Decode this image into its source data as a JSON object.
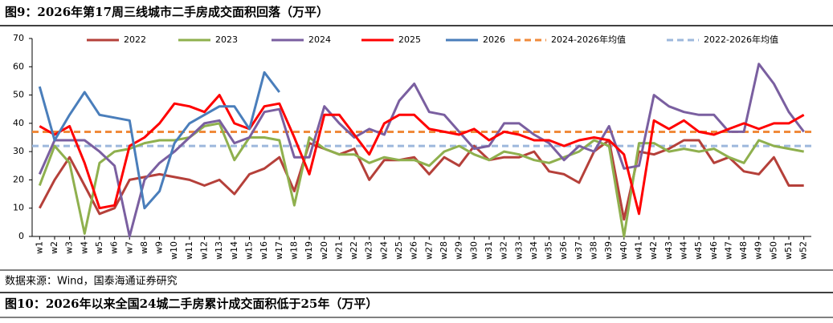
{
  "chart_data": {
    "type": "line",
    "title": "图9：2026年第17周三线城市二手房成交面积回落（万平）",
    "source": "数据来源：Wind，国泰海通证券研究",
    "next_title": "图10：2026年以来全国24城二手房累计成交面积低于25年（万平）",
    "categories": [
      "w1",
      "w2",
      "w3",
      "w4",
      "w5",
      "w6",
      "w7",
      "w8",
      "w9",
      "w10",
      "w11",
      "w12",
      "w13",
      "w14",
      "w15",
      "w16",
      "w17",
      "w18",
      "w19",
      "w20",
      "w21",
      "w22",
      "w23",
      "w24",
      "w25",
      "w26",
      "w27",
      "w28",
      "w29",
      "w30",
      "w31",
      "w32",
      "w33",
      "w34",
      "w35",
      "w36",
      "w37",
      "w38",
      "w39",
      "w40",
      "w41",
      "w42",
      "w43",
      "w44",
      "w45",
      "w46",
      "w47",
      "w48",
      "w49",
      "w50",
      "w51",
      "w52"
    ],
    "ylim": [
      0,
      70
    ],
    "yticks": [
      0,
      10,
      20,
      30,
      40,
      50,
      60,
      70
    ],
    "series": [
      {
        "name": "2022",
        "color": "#b5403a",
        "values": [
          10,
          20,
          28,
          18,
          8,
          10,
          20,
          21,
          22,
          21,
          20,
          18,
          20,
          15,
          22,
          24,
          28,
          16,
          33,
          31,
          29,
          31,
          20,
          27,
          27,
          28,
          22,
          28,
          25,
          32,
          27,
          28,
          28,
          30,
          23,
          22,
          19,
          30,
          34,
          6,
          30,
          29,
          31,
          34,
          34,
          26,
          28,
          23,
          22,
          28,
          18,
          18
        ]
      },
      {
        "name": "2023",
        "color": "#8fb04e",
        "values": [
          18,
          32,
          26,
          1,
          26,
          30,
          31,
          33,
          34,
          34,
          35,
          39,
          40,
          27,
          35,
          35,
          34,
          11,
          35,
          31,
          29,
          29,
          26,
          28,
          27,
          27,
          25,
          30,
          32,
          29,
          27,
          30,
          29,
          27,
          26,
          28,
          30,
          34,
          32,
          0,
          33,
          33,
          30,
          31,
          30,
          31,
          28,
          26,
          34,
          32,
          31,
          30
        ]
      },
      {
        "name": "2024",
        "color": "#7a5fa0",
        "values": [
          22,
          34,
          34,
          34,
          30,
          25,
          0,
          20,
          26,
          30,
          35,
          40,
          41,
          33,
          35,
          44,
          45,
          28,
          28,
          46,
          40,
          35,
          38,
          36,
          48,
          54,
          44,
          43,
          37,
          31,
          32,
          40,
          40,
          36,
          33,
          27,
          32,
          30,
          39,
          24,
          25,
          50,
          46,
          44,
          43,
          43,
          37,
          37,
          61,
          54,
          44,
          37
        ]
      },
      {
        "name": "2025",
        "color": "#ff0000",
        "values": [
          39,
          36,
          39,
          26,
          10,
          11,
          32,
          35,
          40,
          47,
          46,
          44,
          50,
          40,
          38,
          46,
          47,
          35,
          22,
          43,
          43,
          36,
          29,
          40,
          43,
          43,
          38,
          37,
          36,
          38,
          34,
          37,
          36,
          34,
          34,
          32,
          34,
          35,
          34,
          29,
          8,
          41,
          38,
          41,
          37,
          36,
          38,
          40,
          38,
          40,
          40,
          43
        ]
      },
      {
        "name": "2026",
        "color": "#4a7ebb",
        "values": [
          53,
          34,
          43,
          51,
          43,
          42,
          41,
          10,
          16,
          33,
          40,
          43,
          46,
          46,
          38,
          58,
          51,
          null,
          null,
          null,
          null,
          null,
          null,
          null,
          null,
          null,
          null,
          null,
          null,
          null,
          null,
          null,
          null,
          null,
          null,
          null,
          null,
          null,
          null,
          null,
          null,
          null,
          null,
          null,
          null,
          null,
          null,
          null,
          null,
          null,
          null,
          null
        ]
      }
    ],
    "hlines": [
      {
        "name": "2024-2026年均值",
        "color": "#f08a3a",
        "value": 37
      },
      {
        "name": "2022-2026年均值",
        "color": "#9db8dc",
        "value": 32
      }
    ]
  }
}
